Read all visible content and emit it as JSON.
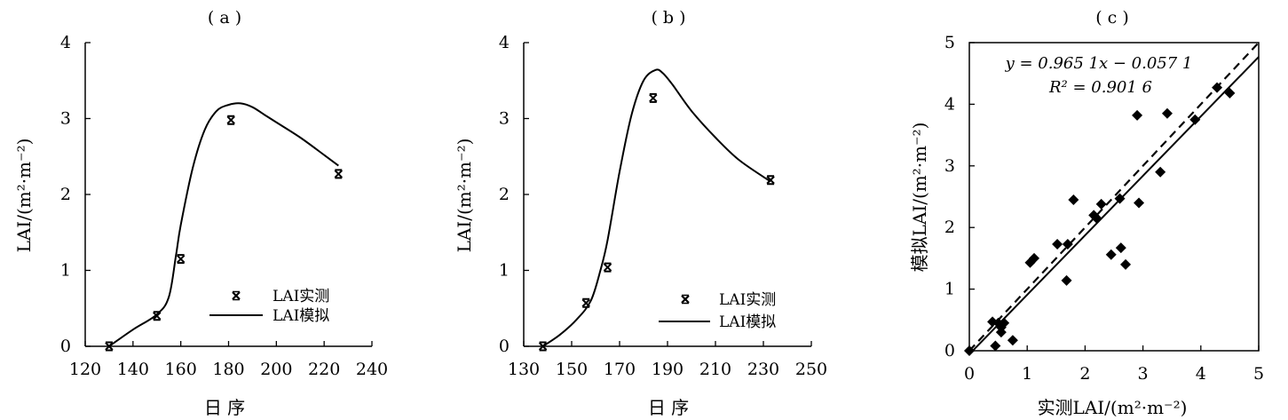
{
  "chart_data": [
    {
      "type": "scatter",
      "panel_label": "( a )",
      "xlabel": "日 序",
      "ylabel": "LAI/(m²·m⁻²)",
      "xlim": [
        120,
        240
      ],
      "ylim": [
        0,
        4
      ],
      "xticks": [
        120,
        140,
        160,
        180,
        200,
        220,
        240
      ],
      "yticks": [
        0,
        1,
        2,
        3,
        4
      ],
      "legend_position": "lower-right",
      "series": [
        {
          "name": "LAI实测",
          "kind": "points",
          "marker": "x",
          "x": [
            130,
            150,
            160,
            181,
            226
          ],
          "y": [
            0.0,
            0.4,
            1.15,
            2.98,
            2.27
          ]
        },
        {
          "name": "LAI模拟",
          "kind": "line",
          "x": [
            130,
            140,
            150,
            155,
            158,
            160,
            165,
            170,
            175,
            180,
            185,
            190,
            195,
            200,
            210,
            220,
            226
          ],
          "y": [
            0.0,
            0.22,
            0.42,
            0.65,
            1.2,
            1.6,
            2.35,
            2.85,
            3.1,
            3.18,
            3.2,
            3.15,
            3.05,
            2.95,
            2.75,
            2.52,
            2.38
          ]
        }
      ]
    },
    {
      "type": "scatter",
      "panel_label": "( b )",
      "xlabel": "日 序",
      "ylabel": "LAI/(m²·m⁻²)",
      "xlim": [
        130,
        250
      ],
      "ylim": [
        0,
        4
      ],
      "xticks": [
        130,
        150,
        170,
        190,
        210,
        230,
        250
      ],
      "yticks": [
        0,
        1,
        2,
        3,
        4
      ],
      "legend_position": "lower-right",
      "series": [
        {
          "name": "LAI实测",
          "kind": "points",
          "marker": "x",
          "x": [
            138,
            156,
            165,
            184,
            233
          ],
          "y": [
            0.0,
            0.57,
            1.04,
            3.27,
            2.19
          ]
        },
        {
          "name": "LAI模拟",
          "kind": "line",
          "x": [
            138,
            145,
            152,
            158,
            162,
            165,
            170,
            175,
            180,
            185,
            188,
            192,
            200,
            210,
            220,
            233
          ],
          "y": [
            0.0,
            0.15,
            0.35,
            0.6,
            1.0,
            1.4,
            2.3,
            3.05,
            3.5,
            3.64,
            3.6,
            3.45,
            3.1,
            2.75,
            2.45,
            2.17
          ]
        }
      ]
    },
    {
      "type": "scatter",
      "panel_label": "( c )",
      "xlabel": "实测LAI/(m²·m⁻²)",
      "ylabel": "模拟LAI/(m²·m⁻²)",
      "xlim": [
        0,
        5
      ],
      "ylim": [
        0,
        5
      ],
      "xticks": [
        0,
        1,
        2,
        3,
        4,
        5
      ],
      "yticks": [
        0,
        1,
        2,
        3,
        4,
        5
      ],
      "annotation_equation": "y = 0.965 1x − 0.057 1",
      "annotation_r2": "R² = 0.901 6",
      "fit": {
        "slope": 0.9651,
        "intercept": -0.0571
      },
      "one_to_one": true,
      "series": [
        {
          "name": "",
          "kind": "points",
          "marker": "diamond",
          "x": [
            0.0,
            0.4,
            0.5,
            0.55,
            0.55,
            0.6,
            0.75,
            0.45,
            1.05,
            1.12,
            1.52,
            1.7,
            1.8,
            1.68,
            2.15,
            2.2,
            2.28,
            2.45,
            2.6,
            2.62,
            2.7,
            2.9,
            2.93,
            3.3,
            3.42,
            3.9,
            4.28,
            4.5
          ],
          "y": [
            0.0,
            0.47,
            0.45,
            0.38,
            0.3,
            0.45,
            0.17,
            0.08,
            1.43,
            1.5,
            1.73,
            1.73,
            2.45,
            1.14,
            2.2,
            2.15,
            2.38,
            1.56,
            2.47,
            1.67,
            1.4,
            3.82,
            2.4,
            2.9,
            3.85,
            3.75,
            4.27,
            4.18
          ]
        }
      ]
    }
  ]
}
